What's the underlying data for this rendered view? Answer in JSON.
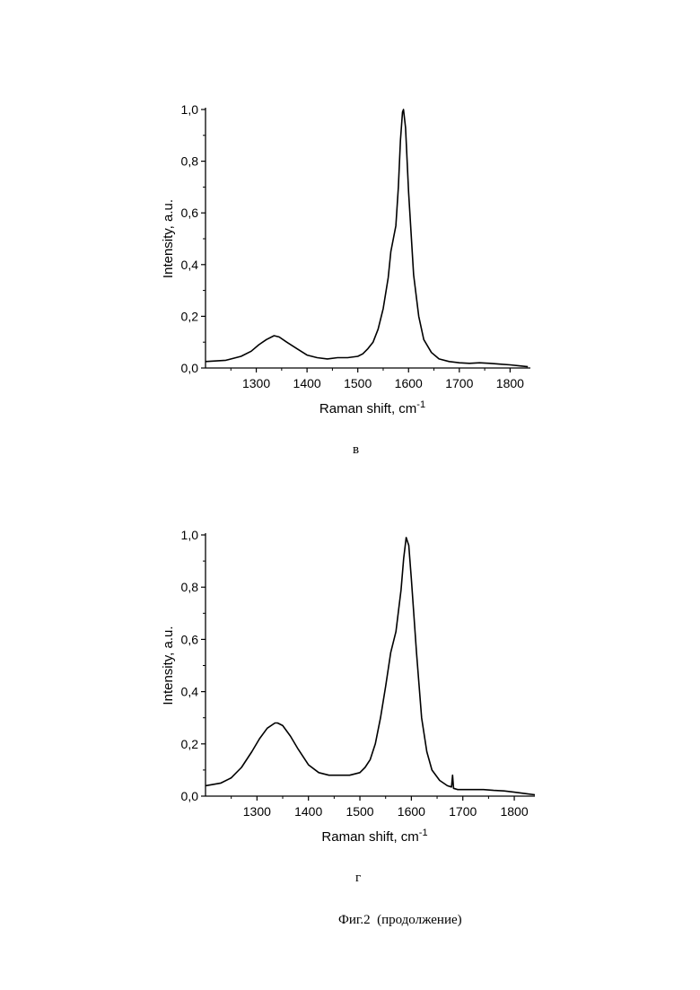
{
  "caption": "Фиг.2  (продолжение)",
  "chart_data": [
    {
      "id": "v",
      "type": "line",
      "panel_label": "в",
      "xlabel": "Raman shift, cm",
      "xlabel_sup": "-1",
      "ylabel": "Intensity, a.u.",
      "xlim": [
        1200,
        1840
      ],
      "ylim": [
        0.0,
        1.0
      ],
      "xticks": [
        1300,
        1400,
        1500,
        1600,
        1700,
        1800
      ],
      "xtick_labels": [
        "1300",
        "1400",
        "1500",
        "1600",
        "1700",
        "1800"
      ],
      "yticks": [
        0.0,
        0.2,
        0.4,
        0.6,
        0.8,
        1.0
      ],
      "ytick_labels": [
        "0,0",
        "0,2",
        "0,4",
        "0,6",
        "0,8",
        "1,0"
      ],
      "color": "#000000",
      "series": [
        {
          "x": [
            1200,
            1240,
            1270,
            1290,
            1305,
            1320,
            1335,
            1345,
            1360,
            1380,
            1400,
            1420,
            1440,
            1460,
            1480,
            1500,
            1510,
            1520,
            1530,
            1540,
            1550,
            1560,
            1565,
            1570,
            1575,
            1580,
            1584,
            1588,
            1590,
            1594,
            1600,
            1610,
            1620,
            1630,
            1645,
            1660,
            1680,
            1700,
            1720,
            1740,
            1760,
            1780,
            1800,
            1820,
            1835
          ],
          "y": [
            0.025,
            0.03,
            0.045,
            0.065,
            0.09,
            0.11,
            0.125,
            0.12,
            0.1,
            0.075,
            0.05,
            0.04,
            0.035,
            0.04,
            0.04,
            0.045,
            0.055,
            0.075,
            0.1,
            0.15,
            0.23,
            0.35,
            0.45,
            0.5,
            0.55,
            0.7,
            0.88,
            0.99,
            1.0,
            0.93,
            0.68,
            0.36,
            0.2,
            0.11,
            0.06,
            0.035,
            0.025,
            0.02,
            0.018,
            0.02,
            0.018,
            0.015,
            0.012,
            0.008,
            0.005
          ]
        }
      ]
    },
    {
      "id": "g",
      "type": "line",
      "panel_label": "г",
      "xlabel": "Raman shift, cm",
      "xlabel_sup": "-1",
      "ylabel": "Intensity, a.u.",
      "xlim": [
        1200,
        1840
      ],
      "ylim": [
        0.0,
        1.0
      ],
      "xticks": [
        1300,
        1400,
        1500,
        1600,
        1700,
        1800
      ],
      "xtick_labels": [
        "1300",
        "1400",
        "1500",
        "1600",
        "1700",
        "1800"
      ],
      "yticks": [
        0.0,
        0.2,
        0.4,
        0.6,
        0.8,
        1.0
      ],
      "ytick_labels": [
        "0,0",
        "0,2",
        "0,4",
        "0,6",
        "0,8",
        "1,0"
      ],
      "color": "#000000",
      "series": [
        {
          "x": [
            1200,
            1230,
            1250,
            1270,
            1290,
            1305,
            1320,
            1335,
            1340,
            1350,
            1365,
            1380,
            1400,
            1420,
            1440,
            1460,
            1480,
            1500,
            1510,
            1520,
            1530,
            1540,
            1550,
            1560,
            1570,
            1580,
            1585,
            1590,
            1595,
            1600,
            1610,
            1620,
            1630,
            1640,
            1655,
            1670,
            1678,
            1680,
            1682,
            1690,
            1710,
            1740,
            1760,
            1780,
            1800,
            1820,
            1840
          ],
          "y": [
            0.04,
            0.05,
            0.07,
            0.11,
            0.17,
            0.22,
            0.26,
            0.28,
            0.28,
            0.27,
            0.23,
            0.18,
            0.12,
            0.09,
            0.08,
            0.08,
            0.08,
            0.09,
            0.11,
            0.14,
            0.2,
            0.3,
            0.42,
            0.55,
            0.63,
            0.79,
            0.91,
            0.99,
            0.96,
            0.83,
            0.55,
            0.3,
            0.17,
            0.1,
            0.06,
            0.04,
            0.035,
            0.08,
            0.03,
            0.025,
            0.025,
            0.025,
            0.022,
            0.02,
            0.015,
            0.01,
            0.005
          ]
        }
      ]
    }
  ]
}
